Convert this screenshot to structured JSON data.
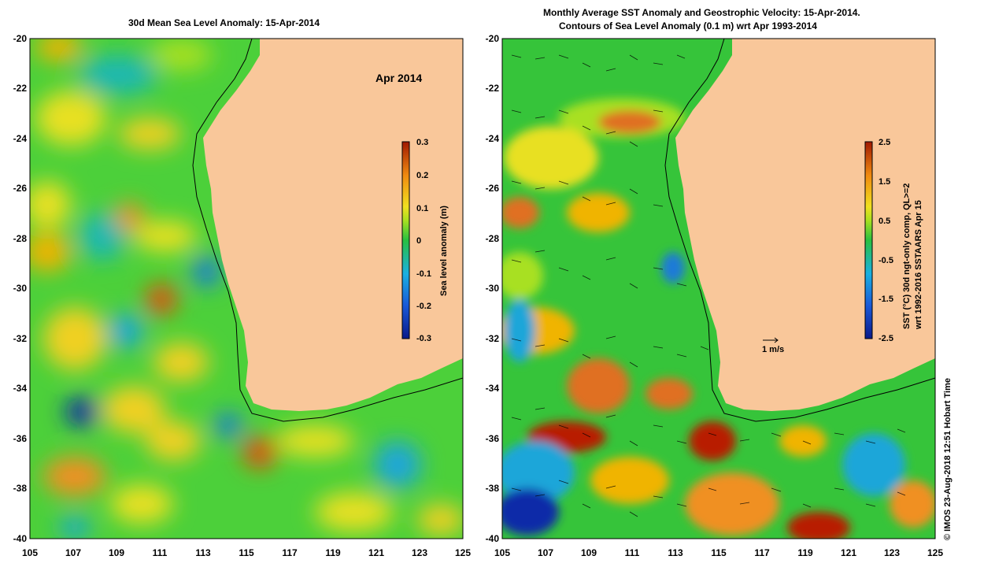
{
  "left_map": {
    "title": "30d Mean Sea Level Anomaly: 15-Apr-2014",
    "date_label": "Apr 2014",
    "colorbar_label": "Sea level anomaly (m)",
    "colorbar_ticks": [
      "0.3",
      "0.2",
      "0.1",
      "0",
      "-0.1",
      "-0.2",
      "-0.3"
    ],
    "y_ticks": [
      "-20",
      "-22",
      "-24",
      "-26",
      "-28",
      "-30",
      "-32",
      "-34",
      "-36",
      "-38",
      "-40"
    ],
    "x_ticks": [
      "105",
      "107",
      "109",
      "111",
      "113",
      "115",
      "117",
      "119",
      "121",
      "123",
      "125"
    ]
  },
  "right_map": {
    "title_line1": "Monthly Average SST Anomaly  and Geostrophic Velocity: 15-Apr-2014.",
    "title_line2": "Contours of Sea Level Anomaly (0.1 m) wrt Apr 1993-2014",
    "colorbar_label_line1": "SST (°C) 30d ngt-only comp, QL>=2",
    "colorbar_label_line2": "wrt 1992-2016 SSTAARS Apr 15",
    "colorbar_ticks": [
      "2.5",
      "1.5",
      "0.5",
      "-0.5",
      "-1.5",
      "-2.5"
    ],
    "velocity_scale_label": "1 m/s",
    "y_ticks": [
      "-20",
      "-22",
      "-24",
      "-26",
      "-28",
      "-30",
      "-32",
      "-34",
      "-36",
      "-38",
      "-40"
    ],
    "x_ticks": [
      "105",
      "107",
      "109",
      "111",
      "113",
      "115",
      "117",
      "119",
      "121",
      "123",
      "125"
    ]
  },
  "credit": "© IMOS 23-Aug-2018 12:51 Hobart Time",
  "colors": {
    "land": "#f9c79a",
    "ocean_base": "#36c43a",
    "anomaly_pos": "#f0b400",
    "anomaly_neg": "#1aa6d9",
    "anomaly_strong_pos": "#b81c00",
    "anomaly_strong_neg": "#0a2aa8"
  }
}
